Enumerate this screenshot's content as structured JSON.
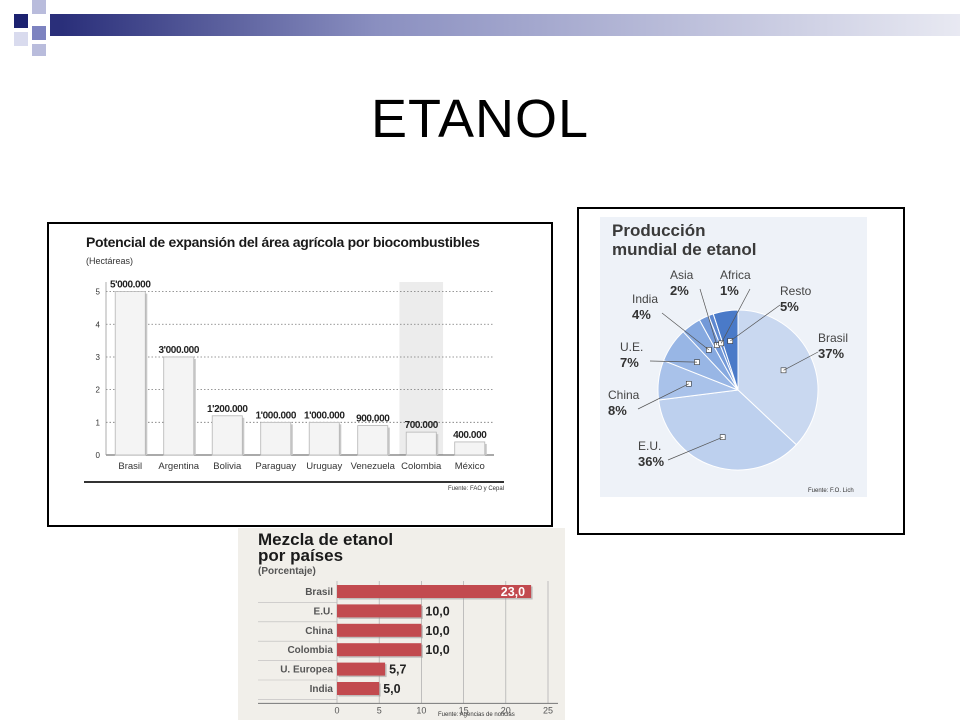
{
  "slide": {
    "title": "ETANOL"
  },
  "theme": {
    "accent_dark": "#1c2270",
    "accent_mid": "#7d83c0",
    "accent_light": "#d9dbee"
  },
  "chart_data": [
    {
      "type": "bar",
      "title": "Potencial de expansión del área agrícola por biocombustibles",
      "ylabel": "(Hectáreas)",
      "categories": [
        "Brasil",
        "Argentina",
        "Bolivia",
        "Paraguay",
        "Uruguay",
        "Venezuela",
        "Colombia",
        "México"
      ],
      "values": [
        5000000,
        3000000,
        1200000,
        1000000,
        1000000,
        900000,
        700000,
        400000
      ],
      "data_labels": [
        "5'000.000",
        "3'000.000",
        "1'200.000",
        "1'000.000",
        "1'000.000",
        "900.000",
        "700.000",
        "400.000"
      ],
      "yticks": [
        "0",
        "1",
        "2",
        "3",
        "4",
        "5"
      ],
      "ylim": [
        0,
        5.6
      ],
      "highlight": "Colombia",
      "source": "Fuente: FAO y Cepal",
      "bar_color": "#f4f4f4",
      "highlight_color": "#ececec"
    },
    {
      "type": "pie",
      "title": "Producción mundial de etanol",
      "title_lines": [
        "Producción",
        "mundial de etanol"
      ],
      "slices": [
        {
          "name": "Brasil",
          "value": 37,
          "label": "37%",
          "color": "#c9d8f0"
        },
        {
          "name": "E.U.",
          "value": 36,
          "label": "36%",
          "color": "#bdd0ee"
        },
        {
          "name": "China",
          "value": 8,
          "label": "8%",
          "color": "#a9c2ea"
        },
        {
          "name": "U.E.",
          "value": 7,
          "label": "7%",
          "color": "#98b6e5"
        },
        {
          "name": "India",
          "value": 4,
          "label": "4%",
          "color": "#86a9e0"
        },
        {
          "name": "Asia",
          "value": 2,
          "label": "2%",
          "color": "#7399d8"
        },
        {
          "name": "Africa",
          "value": 1,
          "label": "1%",
          "color": "#5e88d0"
        },
        {
          "name": "Resto",
          "value": 5,
          "label": "5%",
          "color": "#4a7ac8"
        }
      ],
      "source": "Fuente: F.O. Lich"
    },
    {
      "type": "bar",
      "orientation": "horizontal",
      "title": "Mezcla de etanol por países",
      "title_lines": [
        "Mezcla de etanol",
        "por países"
      ],
      "ylabel": "(Porcentaje)",
      "categories": [
        "Brasil",
        "E.U.",
        "China",
        "Colombia",
        "U. Europea",
        "India"
      ],
      "values": [
        23.0,
        10.0,
        10.0,
        10.0,
        5.7,
        5.0
      ],
      "data_labels": [
        "23,0",
        "10,0",
        "10,0",
        "10,0",
        "5,7",
        "5,0"
      ],
      "xticks": [
        0,
        5,
        10,
        15,
        20,
        25
      ],
      "xlim": [
        0,
        25
      ],
      "bar_color": "#c24a4f",
      "source": "Fuente: Agencias de noticias"
    }
  ]
}
